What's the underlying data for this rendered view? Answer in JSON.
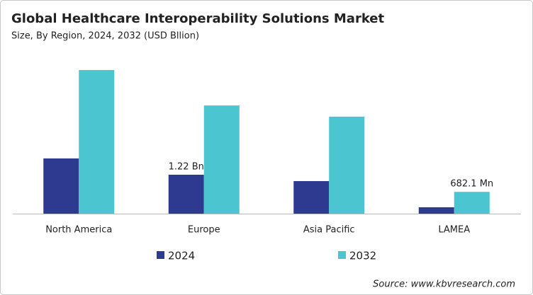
{
  "chart_data": {
    "type": "bar",
    "title": "Global Healthcare Interoperability Solutions Market",
    "subtitle": "Size, By Region, 2024, 2032 (USD Bllion)",
    "categories": [
      "North America",
      "Europe",
      "Asia Pacific",
      "LAMEA"
    ],
    "series": [
      {
        "name": "2024",
        "color": "#2e3a8f",
        "values": [
          1.73,
          1.22,
          1.02,
          0.2
        ],
        "value_labels": [
          null,
          "1.22 Bn",
          null,
          null
        ]
      },
      {
        "name": "2032",
        "color": "#4bc6d0",
        "values": [
          4.5,
          3.39,
          3.04,
          0.6821
        ],
        "value_labels": [
          null,
          null,
          null,
          "682.1 Mn"
        ]
      }
    ],
    "source": "Source: www.kbvresearch.com"
  }
}
